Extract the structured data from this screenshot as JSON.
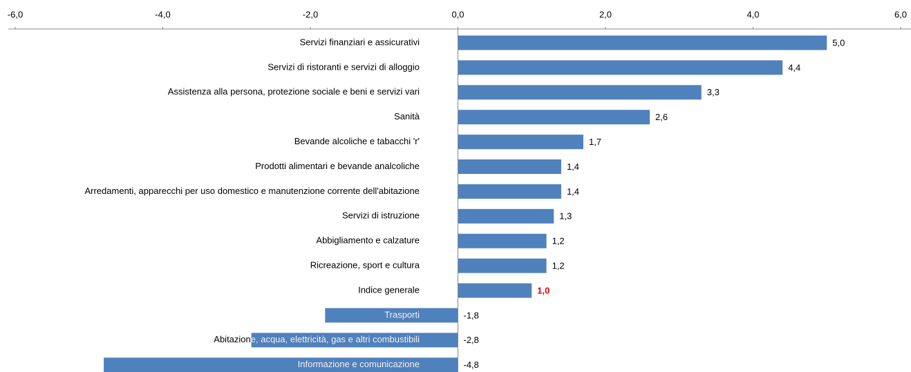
{
  "chart_data": {
    "type": "bar",
    "orientation": "horizontal",
    "categories": [
      "Servizi finanziari e assicurativi",
      "Servizi di ristoranti e servizi di alloggio",
      "Assistenza alla persona, protezione sociale e beni e servizi vari",
      "Sanità",
      "Bevande alcoliche e tabacchi 'r'",
      "Prodotti alimentari e bevande analcoliche",
      "Arredamenti, apparecchi per uso domestico e manutenzione corrente dell'abitazione",
      "Servizi di istruzione",
      "Abbigliamento e calzature",
      "Ricreazione, sport e cultura",
      "Indice generale",
      "Trasporti",
      "Abitazione, acqua, elettricità, gas e altri combustibili",
      "Informazione e comunicazione"
    ],
    "values": [
      5.0,
      4.4,
      3.3,
      2.6,
      1.7,
      1.4,
      1.4,
      1.3,
      1.2,
      1.2,
      1.0,
      -1.8,
      -2.8,
      -4.8
    ],
    "value_labels": [
      "5,0",
      "4,4",
      "3,3",
      "2,6",
      "1,7",
      "1,4",
      "1,4",
      "1,3",
      "1,2",
      "1,2",
      "1,0",
      "-1,8",
      "-2,8",
      "-4,8"
    ],
    "value_label_colors": [
      "#000000",
      "#000000",
      "#000000",
      "#000000",
      "#000000",
      "#000000",
      "#000000",
      "#000000",
      "#000000",
      "#000000",
      "#e00000",
      "#000000",
      "#000000",
      "#000000"
    ],
    "color": "#4f81bd",
    "xlim": [
      -6,
      6
    ],
    "xticks": [
      {
        "value": -6,
        "label": "-6,0"
      },
      {
        "value": -4,
        "label": "-4,0"
      },
      {
        "value": -2,
        "label": "-2,0"
      },
      {
        "value": 0,
        "label": "0,0"
      },
      {
        "value": 2,
        "label": "2,0"
      },
      {
        "value": 4,
        "label": "4,0"
      },
      {
        "value": 6,
        "label": "6,0"
      }
    ],
    "grid": false
  }
}
